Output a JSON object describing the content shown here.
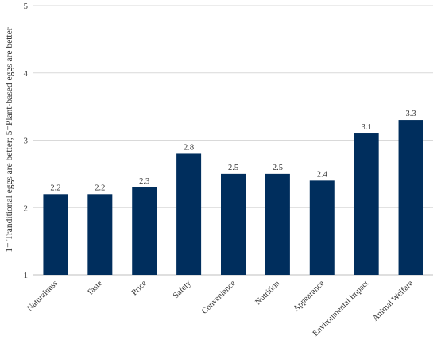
{
  "chart_data": {
    "type": "bar",
    "title": "",
    "xlabel": "",
    "ylabel": "1= Tranditional eggs are better; 5=Plant-based eggs are better",
    "categories": [
      "Naturalness",
      "Taste",
      "Price",
      "Safety",
      "Convenience",
      "Nutrition",
      "Appearance",
      "Environmental Impact",
      "Animal Welfare"
    ],
    "values": [
      2.2,
      2.2,
      2.3,
      2.8,
      2.5,
      2.5,
      2.4,
      3.1,
      3.3
    ],
    "data_labels": [
      "2.2",
      "2.2",
      "2.3",
      "2.8",
      "2.5",
      "2.5",
      "2.4",
      "3.1",
      "3.3"
    ],
    "ylim": [
      1,
      5
    ],
    "yticks": [
      1,
      2,
      3,
      4,
      5
    ],
    "grid": true,
    "legend": "none",
    "colors": {
      "bar": "#002e5d",
      "grid": "#d9d9d9",
      "axis": "#bfbfbf"
    }
  }
}
